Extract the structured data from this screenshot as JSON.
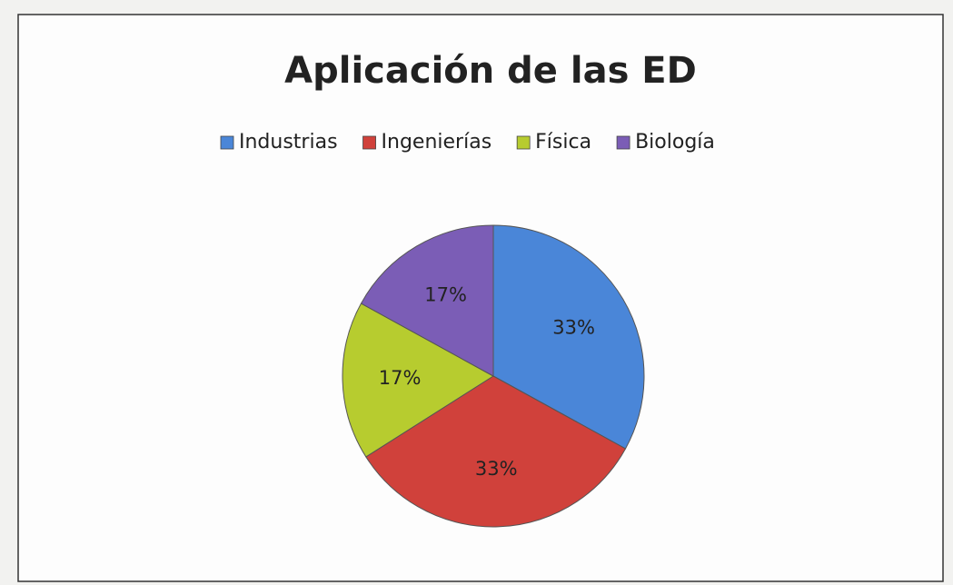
{
  "chart_data": {
    "type": "pie",
    "title": "Aplicación de las ED",
    "categories": [
      "Industrias",
      "Ingenierías",
      "Física",
      "Biología"
    ],
    "values": [
      33,
      33,
      17,
      17
    ],
    "value_labels": [
      "33%",
      "33%",
      "17%",
      "17%"
    ],
    "colors": [
      "#4a86d8",
      "#d0413b",
      "#b7cc2f",
      "#7b5db6"
    ],
    "legend": "top"
  }
}
